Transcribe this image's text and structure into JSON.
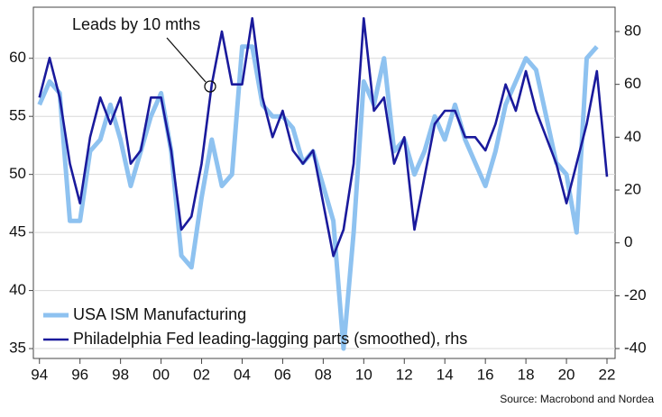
{
  "chart_data": {
    "type": "line",
    "annotation": "Leads by 10 mths",
    "source": "Source: Macrobond and Nordea",
    "x": [
      1994,
      1994.5,
      1995,
      1995.5,
      1996,
      1996.5,
      1997,
      1997.5,
      1998,
      1998.5,
      1999,
      1999.5,
      2000,
      2000.5,
      2001,
      2001.5,
      2002,
      2002.5,
      2003,
      2003.5,
      2004,
      2004.5,
      2005,
      2005.5,
      2006,
      2006.5,
      2007,
      2007.5,
      2008,
      2008.5,
      2009,
      2009.5,
      2010,
      2010.5,
      2011,
      2011.5,
      2012,
      2012.5,
      2013,
      2013.5,
      2014,
      2014.5,
      2015,
      2015.5,
      2016,
      2016.5,
      2017,
      2017.5,
      2018,
      2018.5,
      2019,
      2019.5,
      2020,
      2020.5,
      2021,
      2021.5,
      2022
    ],
    "series": [
      {
        "name": "USA ISM Manufacturing",
        "color": "#8ec2f0",
        "axis": "y",
        "values": [
          56,
          58,
          57,
          46,
          46,
          52,
          53,
          56,
          53,
          49,
          52,
          55,
          57,
          52,
          43,
          42,
          48,
          53,
          49,
          50,
          61,
          61,
          56,
          55,
          55,
          54,
          51,
          52,
          49,
          46,
          35,
          45,
          58,
          56,
          60,
          52,
          53,
          50,
          52,
          55,
          53,
          56,
          53,
          51,
          49,
          52,
          56,
          58,
          60,
          59,
          55,
          51,
          50,
          45,
          60,
          61,
          null
        ]
      },
      {
        "name": "Philadelphia Fed leading-lagging parts (smoothed), rhs",
        "color": "#1a1a9c",
        "axis": "y2",
        "values": [
          55,
          70,
          55,
          30,
          15,
          40,
          55,
          45,
          55,
          30,
          35,
          55,
          55,
          35,
          5,
          10,
          30,
          60,
          80,
          60,
          60,
          85,
          55,
          40,
          50,
          35,
          30,
          35,
          15,
          -5,
          5,
          30,
          85,
          50,
          55,
          30,
          40,
          5,
          25,
          45,
          50,
          50,
          40,
          40,
          35,
          45,
          60,
          50,
          65,
          50,
          40,
          30,
          15,
          30,
          45,
          65,
          25
        ]
      }
    ],
    "xlim": [
      1993.7,
      2022.4
    ],
    "xticks": [
      {
        "value": 1994,
        "label": "94"
      },
      {
        "value": 1996,
        "label": "96"
      },
      {
        "value": 1998,
        "label": "98"
      },
      {
        "value": 2000,
        "label": "00"
      },
      {
        "value": 2002,
        "label": "02"
      },
      {
        "value": 2004,
        "label": "04"
      },
      {
        "value": 2006,
        "label": "06"
      },
      {
        "value": 2008,
        "label": "08"
      },
      {
        "value": 2010,
        "label": "10"
      },
      {
        "value": 2012,
        "label": "12"
      },
      {
        "value": 2014,
        "label": "14"
      },
      {
        "value": 2016,
        "label": "16"
      },
      {
        "value": 2018,
        "label": "18"
      },
      {
        "value": 2020,
        "label": "20"
      },
      {
        "value": 2022,
        "label": "22"
      }
    ],
    "ylim": [
      34.15,
      64.4
    ],
    "yticks": [
      35,
      40,
      45,
      50,
      55,
      60
    ],
    "y2lim": [
      -43.75,
      89.2
    ],
    "y2ticks": [
      -40,
      -20,
      0,
      20,
      40,
      60,
      80
    ],
    "grid": true
  }
}
